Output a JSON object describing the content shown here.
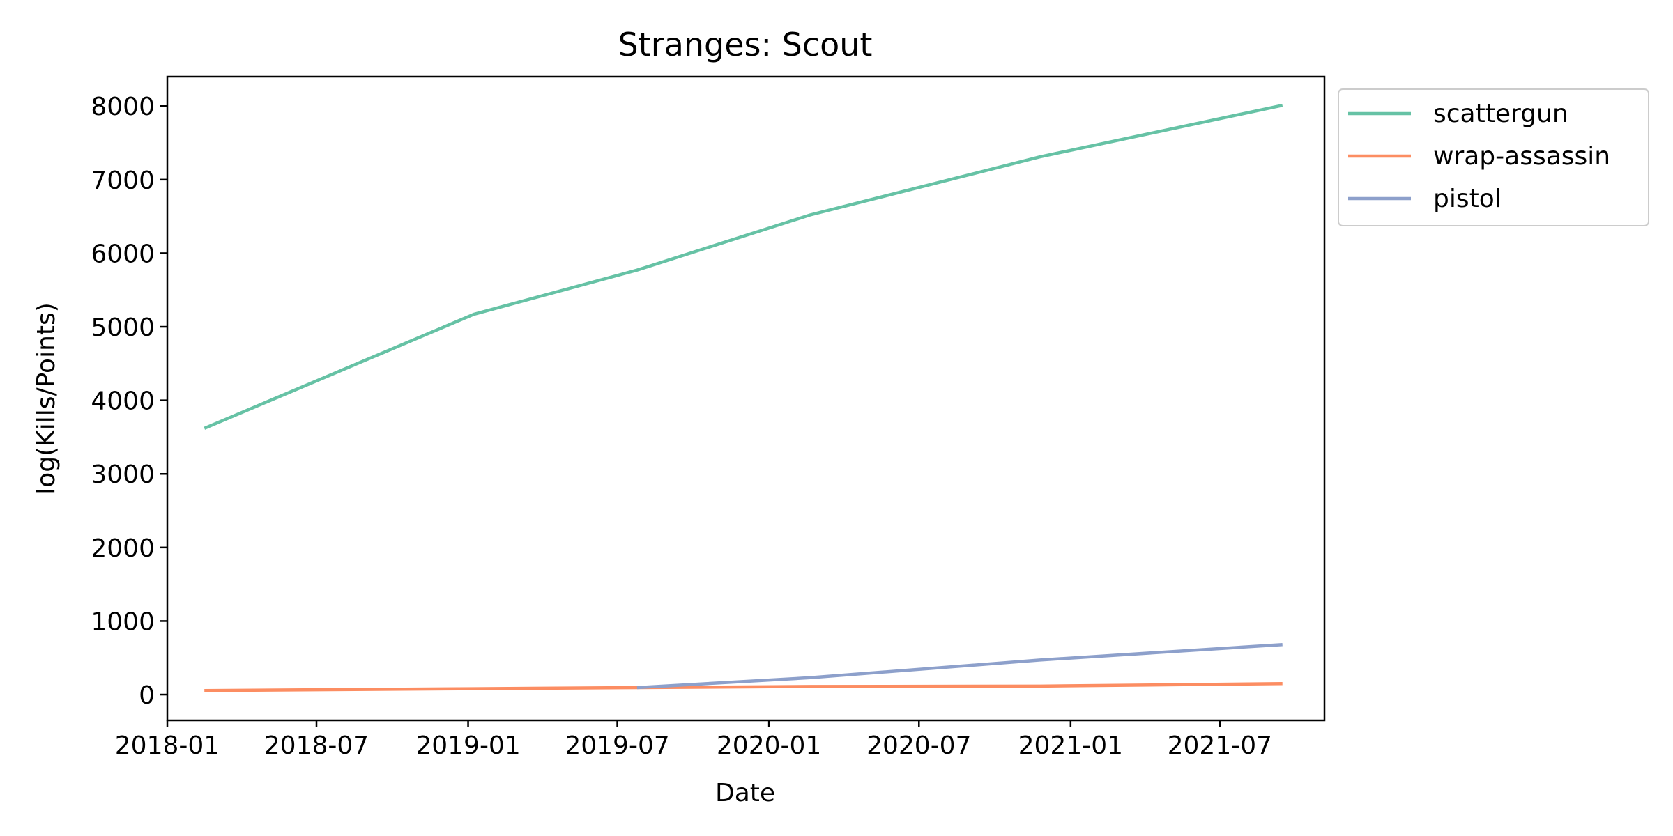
{
  "chart_data": {
    "type": "line",
    "title": "Stranges: Scout",
    "xlabel": "Date",
    "ylabel": "log(Kills/Points)",
    "x_axis_type": "date",
    "xlim": [
      "2018-01-01",
      "2021-11-05"
    ],
    "ylim": [
      -350,
      8400
    ],
    "x_ticks": [
      "2018-01",
      "2018-07",
      "2019-01",
      "2019-07",
      "2020-01",
      "2020-07",
      "2021-01",
      "2021-07"
    ],
    "y_ticks": [
      0,
      1000,
      2000,
      3000,
      4000,
      5000,
      6000,
      7000,
      8000
    ],
    "grid": false,
    "legend": {
      "position": "outside-top-right"
    },
    "series": [
      {
        "name": "scattergun",
        "color": "#66c2a5",
        "points": [
          {
            "x": "2018-02-15",
            "y": 3620
          },
          {
            "x": "2019-01-08",
            "y": 5170
          },
          {
            "x": "2019-07-25",
            "y": 5770
          },
          {
            "x": "2020-02-20",
            "y": 6520
          },
          {
            "x": "2020-11-25",
            "y": 7310
          },
          {
            "x": "2021-09-15",
            "y": 8010
          }
        ]
      },
      {
        "name": "wrap-assassin",
        "color": "#fc8d62",
        "points": [
          {
            "x": "2018-02-15",
            "y": 55
          },
          {
            "x": "2019-01-08",
            "y": 80
          },
          {
            "x": "2019-07-25",
            "y": 95
          },
          {
            "x": "2020-02-20",
            "y": 110
          },
          {
            "x": "2020-11-25",
            "y": 115
          },
          {
            "x": "2021-09-15",
            "y": 150
          }
        ]
      },
      {
        "name": "pistol",
        "color": "#8da0cb",
        "points": [
          {
            "x": "2019-07-25",
            "y": 95
          },
          {
            "x": "2020-02-20",
            "y": 230
          },
          {
            "x": "2020-11-25",
            "y": 470
          },
          {
            "x": "2021-09-15",
            "y": 680
          }
        ]
      }
    ]
  }
}
